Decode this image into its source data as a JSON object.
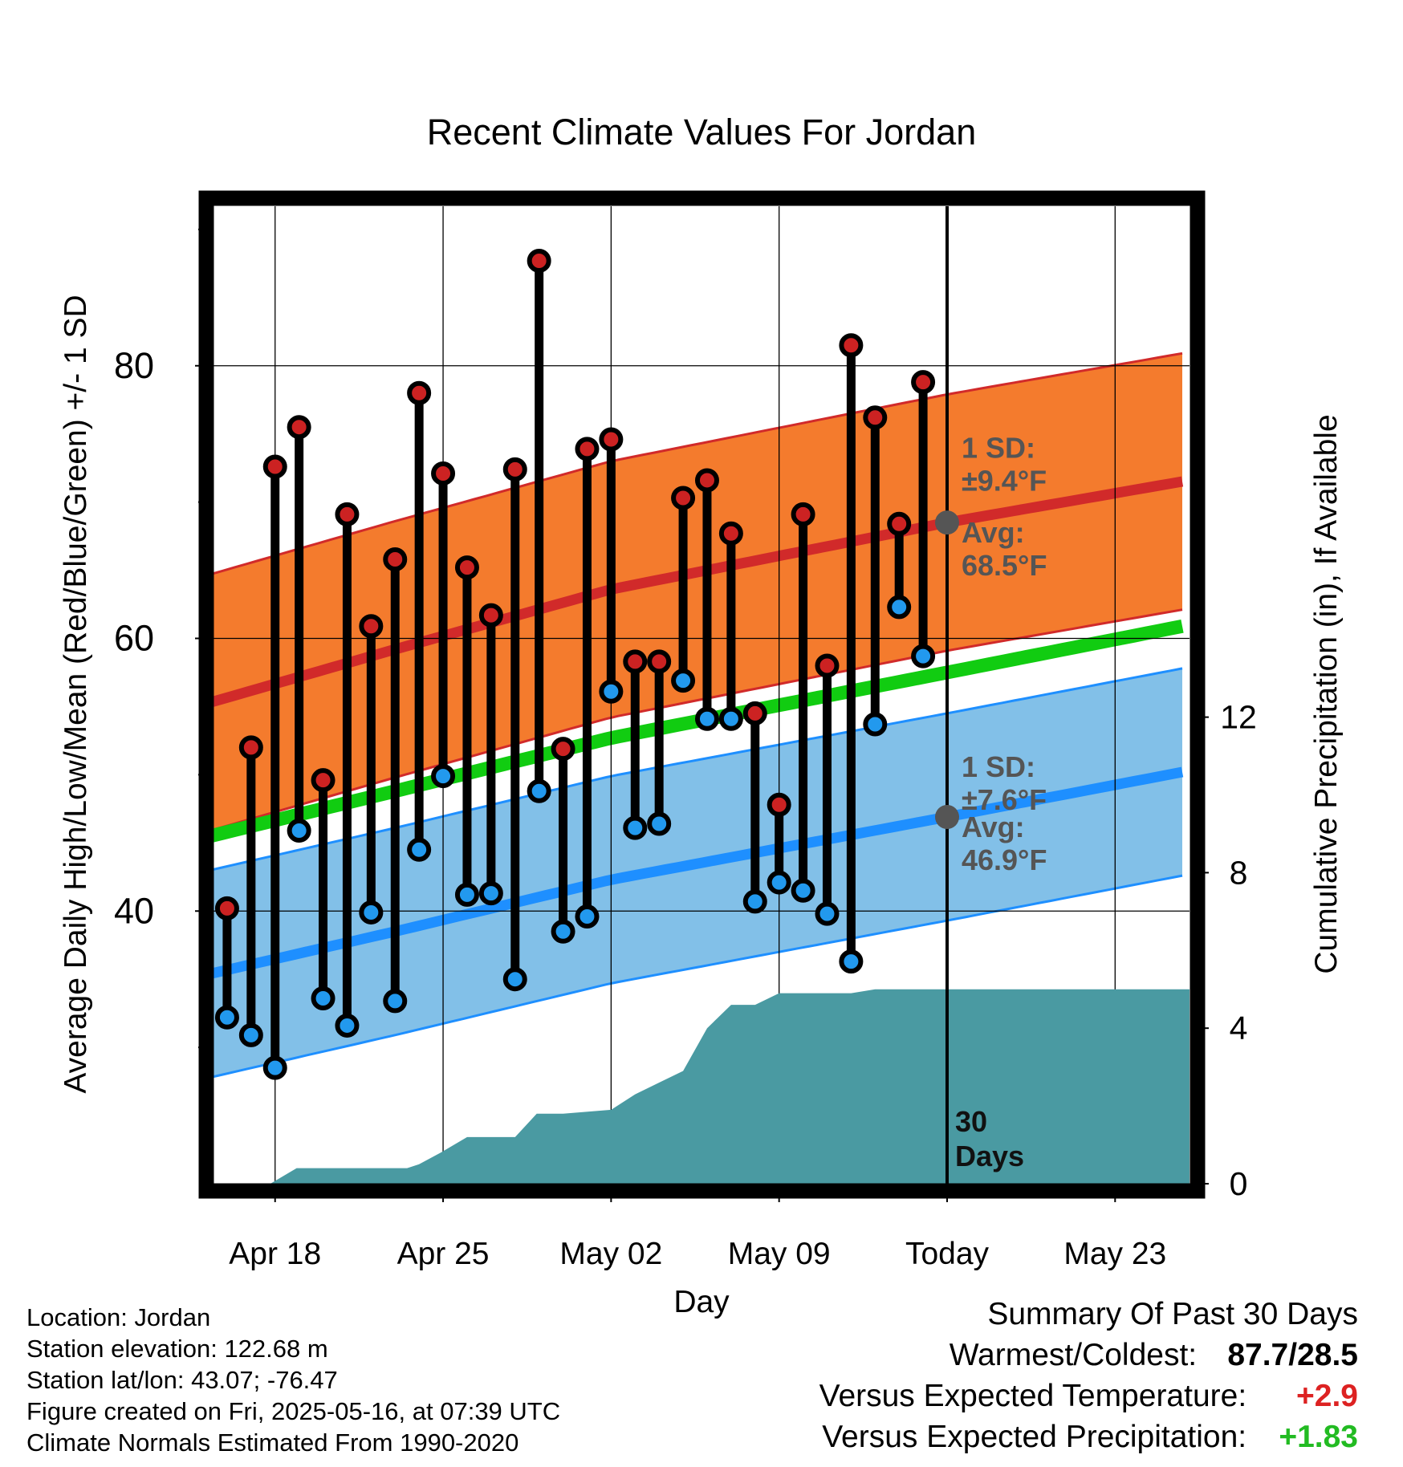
{
  "chart_data": {
    "type": "line",
    "title": "Recent Climate Values For Jordan",
    "xlabel": "Day",
    "ylabel": "Average Daily High/Low/Mean (Red/Blue/Green) +/- 1 SD",
    "y2label": "Cumulative Precipitation (in), If Available",
    "x_tick_labels": [
      {
        "day": 0,
        "label": "Apr 18"
      },
      {
        "day": 7,
        "label": "Apr 25"
      },
      {
        "day": 14,
        "label": "May 02"
      },
      {
        "day": 21,
        "label": "May 09"
      },
      {
        "day": 28,
        "label": "Today"
      },
      {
        "day": 35,
        "label": "May 23"
      }
    ],
    "x_range_days": [
      -2.7,
      38.1
    ],
    "ylim": [
      20,
      91.7
    ],
    "y_ticks": [
      40,
      60,
      80
    ],
    "y_minor_ticks": [
      30,
      50,
      70,
      90
    ],
    "y2lim": [
      0,
      25.14
    ],
    "y2_ticks": [
      0,
      4,
      8,
      12
    ],
    "grid": true,
    "today_day": 28,
    "today_label": "30\nDays",
    "normals": {
      "high_mean": [
        [
          -2.7,
          55.3
        ],
        [
          5,
          59.2
        ],
        [
          14,
          63.6
        ],
        [
          28,
          68.5
        ],
        [
          38.1,
          71.6
        ]
      ],
      "high_sd": 9.4,
      "low_mean": [
        [
          -2.7,
          35.4
        ],
        [
          5,
          38.5
        ],
        [
          14,
          42.3
        ],
        [
          28,
          46.9
        ],
        [
          38.1,
          50.3
        ]
      ],
      "low_sd": 7.6,
      "mean": [
        [
          -2.7,
          45.5
        ],
        [
          5,
          48.8
        ],
        [
          14,
          52.7
        ],
        [
          28,
          57.5
        ],
        [
          38.1,
          61.0
        ]
      ]
    },
    "series": [
      {
        "name": "High",
        "color": "#cc2222",
        "x": [
          -2,
          -1,
          0,
          1,
          2,
          3,
          4,
          5,
          6,
          7,
          8,
          9,
          10,
          11,
          12,
          13,
          14,
          15,
          16,
          17,
          18,
          19,
          20,
          21,
          22,
          23,
          24,
          25,
          26,
          27
        ],
        "values": [
          40.2,
          52.0,
          72.6,
          75.5,
          49.6,
          69.1,
          60.9,
          65.8,
          78.0,
          72.1,
          65.2,
          61.7,
          72.4,
          87.7,
          51.9,
          73.9,
          74.6,
          58.3,
          58.3,
          70.3,
          71.6,
          67.7,
          54.5,
          47.8,
          69.1,
          58.0,
          81.5,
          76.2,
          68.4,
          78.8
        ]
      },
      {
        "name": "Low",
        "color": "#2288ee",
        "x": [
          -2,
          -1,
          0,
          1,
          2,
          3,
          4,
          5,
          6,
          7,
          8,
          9,
          10,
          11,
          12,
          13,
          14,
          15,
          16,
          17,
          18,
          19,
          20,
          21,
          22,
          23,
          24,
          25,
          26,
          27
        ],
        "values": [
          32.2,
          30.9,
          28.5,
          45.9,
          33.6,
          31.6,
          39.9,
          33.4,
          44.5,
          49.9,
          41.2,
          41.3,
          35.0,
          48.8,
          38.5,
          39.6,
          56.1,
          46.1,
          46.4,
          56.9,
          54.1,
          54.1,
          40.7,
          42.1,
          41.5,
          39.8,
          36.3,
          53.7,
          62.3,
          58.7
        ]
      }
    ],
    "precipitation_cumulative": [
      [
        -0.2,
        0.0
      ],
      [
        0.9,
        0.4
      ],
      [
        5.5,
        0.4
      ],
      [
        6.0,
        0.5
      ],
      [
        6.9,
        0.8
      ],
      [
        8.0,
        1.2
      ],
      [
        10.0,
        1.2
      ],
      [
        10.9,
        1.8
      ],
      [
        12.0,
        1.8
      ],
      [
        14.0,
        1.9
      ],
      [
        15.0,
        2.3
      ],
      [
        16.0,
        2.6
      ],
      [
        17.0,
        2.9
      ],
      [
        18.0,
        4.0
      ],
      [
        19.0,
        4.6
      ],
      [
        20.0,
        4.6
      ],
      [
        21.0,
        4.9
      ],
      [
        24.0,
        4.9
      ],
      [
        25.0,
        5.0
      ],
      [
        38.1,
        5.0
      ]
    ],
    "annotations": {
      "high_sd_label": [
        "1 SD:",
        "±9.4°F"
      ],
      "high_avg_label": [
        "Avg:",
        "68.5°F"
      ],
      "low_sd_label": [
        "1 SD:",
        "±7.6°F"
      ],
      "low_avg_label": [
        "Avg:",
        "46.9°F"
      ]
    }
  },
  "footer": {
    "location": "Location: Jordan",
    "elevation": "Station elevation: 122.68 m",
    "latlon": "Station lat/lon: 43.07; -76.47",
    "created": "Figure created on Fri, 2025-05-16, at 07:39 UTC",
    "normals": "Climate Normals Estimated From 1990-2020"
  },
  "summary": {
    "title": "Summary Of Past 30 Days",
    "warmest_label": "Warmest/Coldest:",
    "warmest_value": "87.7/28.5",
    "temp_label": "Versus Expected Temperature:",
    "temp_value": "+2.9",
    "temp_color": "#dd2222",
    "precip_label": "Versus Expected Precipitation:",
    "precip_value": "+1.83",
    "precip_color": "#22bb22"
  },
  "colors": {
    "high_band": "#f47b2d",
    "high_line": "#d12a2a",
    "low_band": "#82c0e8",
    "low_line": "#1e8fff",
    "mean_line": "#11cc11",
    "precip_fill": "#4a9aa2",
    "high_dot": "#cc2222",
    "low_dot": "#2299ee",
    "avg_dot": "#555555"
  }
}
